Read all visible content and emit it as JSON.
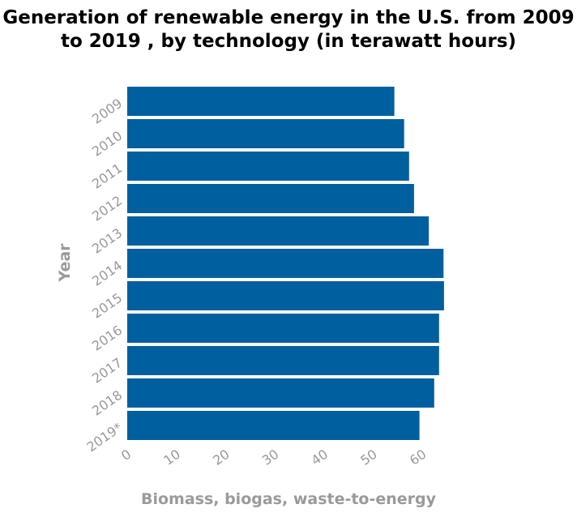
{
  "chart_data": {
    "type": "bar",
    "orientation": "horizontal",
    "title": "Generation of renewable energy in the U.S. from 2009 to 2019 , by technology (in terawatt hours)",
    "xlabel": "Biomass, biogas, waste-to-energy",
    "ylabel": "Year",
    "categories": [
      "2009",
      "2010",
      "2011",
      "2012",
      "2013",
      "2014",
      "2015",
      "2016",
      "2017",
      "2018",
      "2019*"
    ],
    "values": [
      54.3,
      56.3,
      57.3,
      58.3,
      61.3,
      64.3,
      64.4,
      63.4,
      63.4,
      62.4,
      59.4
    ],
    "xlim": [
      0,
      65
    ],
    "xticks": [
      "0",
      "10",
      "20",
      "30",
      "40",
      "50",
      "60"
    ],
    "bar_color": "#005f9e",
    "grid": false
  }
}
